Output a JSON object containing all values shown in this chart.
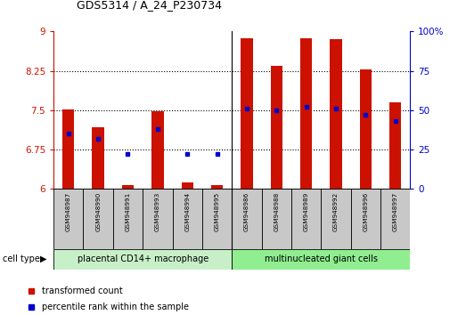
{
  "title": "GDS5314 / A_24_P230734",
  "samples": [
    "GSM948987",
    "GSM948990",
    "GSM948991",
    "GSM948993",
    "GSM948994",
    "GSM948995",
    "GSM948986",
    "GSM948988",
    "GSM948989",
    "GSM948992",
    "GSM948996",
    "GSM948997"
  ],
  "transformed_count": [
    7.52,
    7.18,
    6.08,
    7.48,
    6.12,
    6.08,
    8.87,
    8.35,
    8.87,
    8.85,
    8.28,
    7.65
  ],
  "percentile_rank": [
    35,
    32,
    22,
    38,
    22,
    22,
    51,
    50,
    52,
    51,
    47,
    43
  ],
  "groups": [
    {
      "label": "placental CD14+ macrophage",
      "start": 0,
      "end": 6,
      "color": "#c8f0c8"
    },
    {
      "label": "multinucleated giant cells",
      "start": 6,
      "end": 12,
      "color": "#90ee90"
    }
  ],
  "ylim_left": [
    6,
    9
  ],
  "ylim_right": [
    0,
    100
  ],
  "yticks_left": [
    6,
    6.75,
    7.5,
    8.25,
    9
  ],
  "yticks_right": [
    0,
    25,
    50,
    75,
    100
  ],
  "ytick_labels_right": [
    "0",
    "25",
    "50",
    "75",
    "100%"
  ],
  "bar_color": "#cc1100",
  "dot_color": "#0000cc",
  "bg_color": "#ffffff",
  "ax_left_color": "#cc1100",
  "ax_right_color": "#0000cc",
  "cell_type_label": "cell type",
  "legend_items": [
    {
      "label": "transformed count",
      "color": "#cc1100"
    },
    {
      "label": "percentile rank within the sample",
      "color": "#0000cc"
    }
  ],
  "bar_width": 0.4,
  "group_sep": 5.5,
  "sample_box_color": "#c8c8c8",
  "grid_yticks": [
    6.75,
    7.5,
    8.25
  ]
}
